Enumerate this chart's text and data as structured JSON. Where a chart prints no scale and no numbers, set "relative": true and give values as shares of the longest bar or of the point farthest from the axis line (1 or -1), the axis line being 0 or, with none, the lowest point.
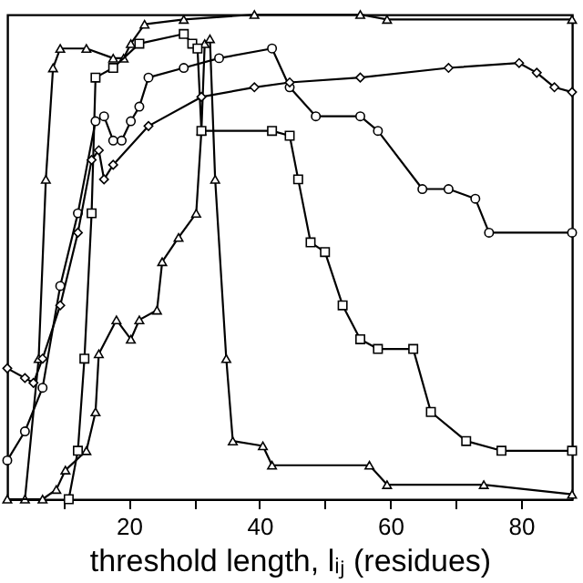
{
  "chart_data": {
    "type": "line",
    "relative": true,
    "xlabel": "threshold length, lᵢⱼ (residues)",
    "xlim": [
      1.4,
      87.8
    ],
    "xticks": [
      {
        "value": 10,
        "label": null
      },
      20,
      {
        "value": 30,
        "label": null
      },
      40,
      {
        "value": 50,
        "label": null
      },
      60,
      {
        "value": 70,
        "label": null
      },
      80
    ],
    "line_style": "solid",
    "series": [
      {
        "color": "#000000",
        "marker": "triangle",
        "x": [
          4.1,
          6.2,
          7.3,
          8.4,
          9.5,
          13.5,
          17.6,
          19.2,
          20.3,
          22.4,
          28.4,
          39.2,
          55.4,
          59.5,
          87.8
        ],
        "values": [
          0,
          0.29,
          0.66,
          0.89,
          0.93,
          0.93,
          0.91,
          0.91,
          0.94,
          0.98,
          0.99,
          1.0,
          1.0,
          0.99,
          0.99
        ]
      },
      {
        "color": "#000000",
        "marker": "triangle",
        "x": [
          1.4,
          6.8,
          8.9,
          10.3,
          13.5,
          14.9,
          15.4,
          18.1,
          20.3,
          21.6,
          24.3,
          25.1,
          27.6,
          30.3,
          31.1,
          31.6,
          32.4,
          33.2,
          34.9,
          35.9,
          40.5,
          41.9,
          56.8,
          59.5,
          74.3,
          87.8
        ],
        "values": [
          0,
          0.0,
          0.02,
          0.06,
          0.1,
          0.18,
          0.3,
          0.37,
          0.33,
          0.37,
          0.39,
          0.49,
          0.54,
          0.59,
          0.76,
          0.94,
          0.95,
          0.66,
          0.29,
          0.12,
          0.11,
          0.07,
          0.07,
          0.03,
          0.03,
          0.01
        ]
      },
      {
        "color": "#000000",
        "marker": "square",
        "x": [
          10.8,
          12.2,
          13.2,
          14.3,
          14.9,
          17.6,
          21.6,
          28.4,
          29.7,
          30.5,
          31.1,
          41.9,
          44.6,
          45.9,
          47.8,
          50.0,
          52.7,
          55.4,
          58.1,
          63.5,
          66.2,
          71.6,
          77.0,
          87.8
        ],
        "values": [
          0,
          0.1,
          0.29,
          0.59,
          0.87,
          0.89,
          0.94,
          0.96,
          0.94,
          0.93,
          0.76,
          0.76,
          0.75,
          0.66,
          0.53,
          0.51,
          0.4,
          0.33,
          0.31,
          0.31,
          0.18,
          0.12,
          0.1,
          0.1
        ]
      },
      {
        "color": "#000000",
        "marker": "circle",
        "x": [
          1.4,
          4.1,
          6.8,
          9.5,
          12.2,
          14.9,
          16.2,
          17.6,
          18.9,
          20.3,
          21.6,
          23.0,
          28.4,
          33.8,
          41.9,
          44.6,
          48.6,
          55.4,
          58.1,
          64.9,
          68.9,
          73.0,
          75.1,
          87.8
        ],
        "values": [
          0.08,
          0.14,
          0.23,
          0.44,
          0.59,
          0.78,
          0.79,
          0.74,
          0.74,
          0.78,
          0.81,
          0.87,
          0.89,
          0.91,
          0.93,
          0.85,
          0.79,
          0.79,
          0.76,
          0.64,
          0.64,
          0.62,
          0.55,
          0.55
        ]
      },
      {
        "color": "#000000",
        "marker": "diamond",
        "x": [
          1.4,
          4.1,
          5.4,
          6.8,
          9.5,
          12.2,
          14.3,
          15.4,
          16.2,
          17.6,
          23.0,
          31.1,
          39.2,
          44.6,
          55.4,
          68.9,
          79.7,
          82.4,
          85.1,
          87.8
        ],
        "values": [
          0.27,
          0.25,
          0.24,
          0.29,
          0.4,
          0.55,
          0.7,
          0.72,
          0.66,
          0.69,
          0.77,
          0.83,
          0.85,
          0.86,
          0.87,
          0.89,
          0.9,
          0.88,
          0.85,
          0.84
        ]
      }
    ]
  }
}
